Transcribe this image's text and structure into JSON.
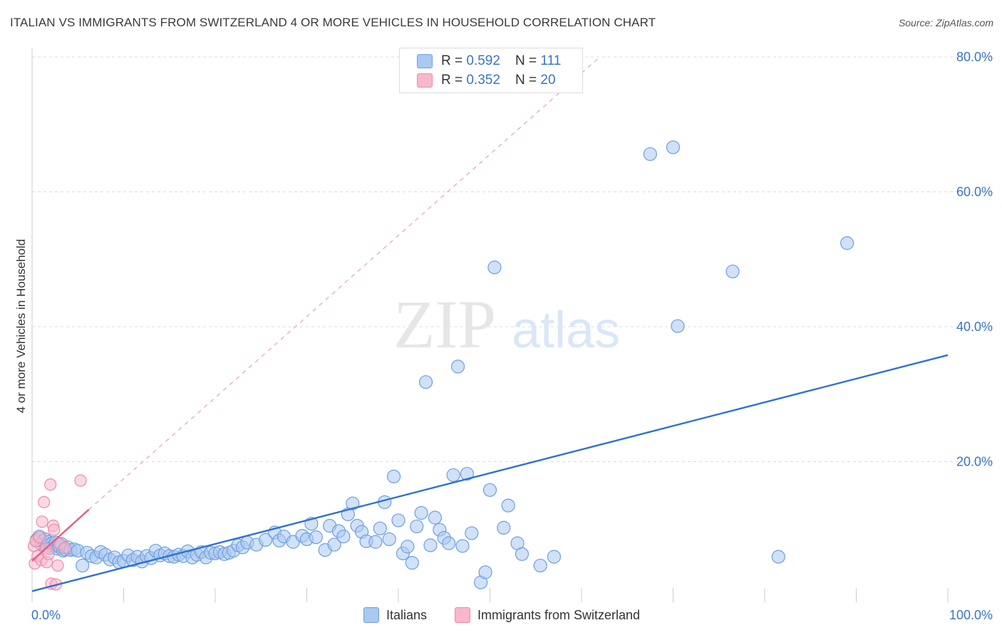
{
  "header": {
    "title": "ITALIAN VS IMMIGRANTS FROM SWITZERLAND 4 OR MORE VEHICLES IN HOUSEHOLD CORRELATION CHART",
    "source": "Source: ZipAtlas.com"
  },
  "legend_top": {
    "rows": [
      {
        "r_label": "R = ",
        "r_value": "0.592",
        "n_label": "N = ",
        "n_value": "111"
      },
      {
        "r_label": "R = ",
        "r_value": "0.352",
        "n_label": "N = ",
        "n_value": "20"
      }
    ]
  },
  "watermark": {
    "zip": "ZIP",
    "atlas": "atlas"
  },
  "colors": {
    "italians_fill": "#a9c8f2",
    "italians_stroke": "#6f9fdc",
    "italians_line": "#2f72d0",
    "swiss_fill": "#f7b8cb",
    "swiss_stroke": "#ee8aa8",
    "swiss_line": "#e45a85",
    "grid": "#dcdcdc",
    "axis_text": "#3a74c4"
  },
  "chart_data": {
    "type": "scatter",
    "title": "ITALIAN VS IMMIGRANTS FROM SWITZERLAND 4 OR MORE VEHICLES IN HOUSEHOLD CORRELATION CHART",
    "xlabel": "",
    "ylabel": "4 or more Vehicles in Household",
    "xlim": [
      0,
      100
    ],
    "ylim": [
      0,
      80
    ],
    "x_tick_labels": [
      "0.0%",
      "100.0%"
    ],
    "y_ticks": [
      20,
      40,
      60,
      80
    ],
    "y_tick_labels": [
      "20.0%",
      "40.0%",
      "60.0%",
      "80.0%"
    ],
    "grid": true,
    "legend_position": "bottom",
    "series": [
      {
        "name": "Italians",
        "r": 0.592,
        "n": 111,
        "trend": {
          "x": [
            0,
            100
          ],
          "y": [
            0.8,
            35.8
          ],
          "style": "solid"
        },
        "points": [
          [
            0.5,
            8.4
          ],
          [
            0.8,
            8.9
          ],
          [
            1.0,
            7.8
          ],
          [
            1.2,
            8.2
          ],
          [
            1.4,
            8.5
          ],
          [
            1.6,
            7.6
          ],
          [
            1.8,
            8.1
          ],
          [
            2.0,
            7.2
          ],
          [
            2.2,
            7.9
          ],
          [
            2.4,
            7.5
          ],
          [
            2.6,
            8.0
          ],
          [
            2.8,
            7.1
          ],
          [
            3.0,
            7.4
          ],
          [
            3.2,
            7.8
          ],
          [
            3.4,
            6.8
          ],
          [
            3.6,
            7.0
          ],
          [
            3.9,
            7.3
          ],
          [
            4.2,
            6.9
          ],
          [
            4.6,
            7.0
          ],
          [
            5.0,
            6.8
          ],
          [
            5.5,
            4.6
          ],
          [
            6.0,
            6.5
          ],
          [
            6.5,
            6.0
          ],
          [
            7.0,
            5.8
          ],
          [
            7.5,
            6.6
          ],
          [
            8.0,
            6.2
          ],
          [
            8.5,
            5.5
          ],
          [
            9.0,
            5.8
          ],
          [
            9.5,
            5.1
          ],
          [
            10.0,
            5.3
          ],
          [
            10.5,
            6.1
          ],
          [
            11.0,
            5.4
          ],
          [
            11.5,
            5.9
          ],
          [
            12.0,
            5.2
          ],
          [
            12.5,
            6.0
          ],
          [
            13.0,
            5.7
          ],
          [
            13.5,
            6.8
          ],
          [
            14.0,
            6.1
          ],
          [
            14.5,
            6.4
          ],
          [
            15.0,
            6.0
          ],
          [
            15.5,
            5.9
          ],
          [
            16.0,
            6.2
          ],
          [
            16.5,
            6.0
          ],
          [
            17.0,
            6.7
          ],
          [
            17.5,
            5.8
          ],
          [
            18.0,
            6.2
          ],
          [
            18.5,
            6.6
          ],
          [
            19.0,
            5.8
          ],
          [
            19.5,
            6.5
          ],
          [
            20.0,
            6.4
          ],
          [
            20.5,
            6.6
          ],
          [
            21.0,
            6.3
          ],
          [
            21.5,
            6.5
          ],
          [
            22.0,
            6.8
          ],
          [
            22.5,
            7.6
          ],
          [
            23.0,
            7.3
          ],
          [
            23.5,
            8.0
          ],
          [
            24.5,
            7.7
          ],
          [
            25.5,
            8.4
          ],
          [
            26.5,
            9.5
          ],
          [
            27.0,
            8.3
          ],
          [
            27.5,
            8.9
          ],
          [
            28.5,
            8.1
          ],
          [
            29.5,
            9.0
          ],
          [
            30.0,
            8.5
          ],
          [
            30.5,
            10.8
          ],
          [
            31.0,
            8.8
          ],
          [
            32.0,
            6.9
          ],
          [
            32.5,
            10.5
          ],
          [
            33.0,
            7.7
          ],
          [
            33.5,
            9.7
          ],
          [
            34.0,
            8.9
          ],
          [
            34.5,
            12.2
          ],
          [
            35.0,
            13.8
          ],
          [
            35.5,
            10.5
          ],
          [
            36.0,
            9.6
          ],
          [
            36.5,
            8.2
          ],
          [
            37.5,
            8.1
          ],
          [
            38.0,
            10.1
          ],
          [
            38.5,
            14.0
          ],
          [
            39.0,
            8.5
          ],
          [
            39.5,
            17.8
          ],
          [
            40.0,
            11.3
          ],
          [
            40.5,
            6.4
          ],
          [
            41.0,
            7.4
          ],
          [
            41.5,
            5.0
          ],
          [
            42.0,
            10.4
          ],
          [
            42.5,
            12.4
          ],
          [
            43.0,
            31.8
          ],
          [
            43.5,
            7.6
          ],
          [
            44.0,
            11.7
          ],
          [
            44.5,
            9.9
          ],
          [
            45.0,
            8.7
          ],
          [
            45.5,
            7.9
          ],
          [
            46.0,
            18.0
          ],
          [
            46.5,
            34.1
          ],
          [
            47.0,
            7.5
          ],
          [
            47.5,
            18.2
          ],
          [
            48.0,
            9.4
          ],
          [
            49.0,
            2.1
          ],
          [
            49.5,
            3.6
          ],
          [
            50.0,
            15.8
          ],
          [
            50.5,
            48.8
          ],
          [
            51.5,
            10.2
          ],
          [
            52.0,
            13.5
          ],
          [
            53.0,
            7.9
          ],
          [
            53.5,
            6.3
          ],
          [
            55.5,
            4.6
          ],
          [
            57.0,
            5.9
          ],
          [
            67.5,
            65.6
          ],
          [
            70.0,
            66.6
          ],
          [
            70.5,
            40.1
          ],
          [
            76.5,
            48.2
          ],
          [
            81.5,
            5.9
          ],
          [
            89.0,
            52.4
          ]
        ]
      },
      {
        "name": "Immigrants from Switzerland",
        "r": 0.352,
        "n": 20,
        "trend": {
          "x": [
            0,
            6.2
          ],
          "y": [
            5.3,
            12.9
          ],
          "style": "solid",
          "extension": {
            "x": [
              6.2,
              62
            ],
            "y": [
              12.9,
              80
            ],
            "style": "dashed"
          }
        },
        "points": [
          [
            0.2,
            7.5
          ],
          [
            0.3,
            4.9
          ],
          [
            0.4,
            8.2
          ],
          [
            0.6,
            6.0
          ],
          [
            0.8,
            8.8
          ],
          [
            1.0,
            5.4
          ],
          [
            1.1,
            11.1
          ],
          [
            1.3,
            14.0
          ],
          [
            1.5,
            7.1
          ],
          [
            1.6,
            5.1
          ],
          [
            1.8,
            6.3
          ],
          [
            2.0,
            16.6
          ],
          [
            2.1,
            1.9
          ],
          [
            2.3,
            10.5
          ],
          [
            2.4,
            9.9
          ],
          [
            2.6,
            1.8
          ],
          [
            2.8,
            4.6
          ],
          [
            3.0,
            7.8
          ],
          [
            3.6,
            7.2
          ],
          [
            5.3,
            17.2
          ]
        ]
      }
    ]
  },
  "legend_bottom": {
    "items": [
      {
        "label": "Italians"
      },
      {
        "label": "Immigrants from Switzerland"
      }
    ]
  }
}
